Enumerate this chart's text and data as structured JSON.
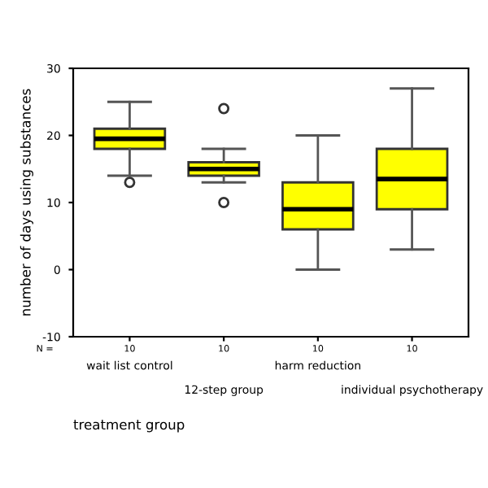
{
  "chart_data": {
    "type": "box",
    "xlabel": "treatment group",
    "ylabel": "number of days using substances",
    "categories": [
      "wait list control",
      "12-step group",
      "harm reduction",
      "individual psychotherapy"
    ],
    "boxes": [
      {
        "low": 14,
        "q1": 18,
        "median": 19.5,
        "q3": 21,
        "high": 25,
        "outliers": [
          13
        ]
      },
      {
        "low": 13,
        "q1": 14,
        "median": 15,
        "q3": 16,
        "high": 18,
        "outliers": [
          10,
          24
        ]
      },
      {
        "low": 0,
        "q1": 6,
        "median": 9,
        "q3": 13,
        "high": 20
      },
      {
        "low": 3,
        "q1": 9,
        "median": 13.5,
        "q3": 18,
        "high": 27
      }
    ],
    "color": "#ffff00",
    "ylim": [
      -10,
      30
    ],
    "yticks": [
      -10,
      0,
      10,
      20,
      30
    ],
    "grid": false,
    "annotations": [
      "N =",
      "10",
      "10",
      "10",
      "10"
    ]
  }
}
